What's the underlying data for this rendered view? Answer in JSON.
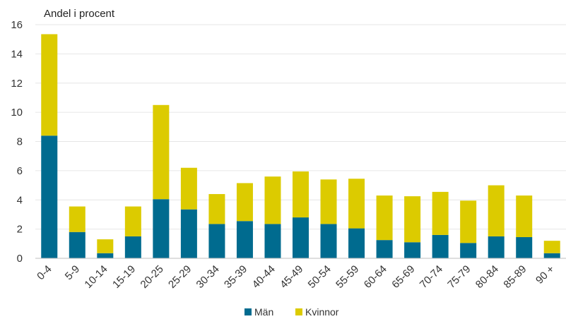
{
  "chart_data": {
    "type": "bar",
    "stacked": true,
    "ylabel": "Andel i procent",
    "ylim": [
      0,
      16
    ],
    "yticks": [
      0,
      2,
      4,
      6,
      8,
      10,
      12,
      14,
      16
    ],
    "grid": true,
    "legend_position": "bottom",
    "categories": [
      "0-4",
      "5-9",
      "10-14",
      "15-19",
      "20-25",
      "25-29",
      "30-34",
      "35-39",
      "40-44",
      "45-49",
      "50-54",
      "55-59",
      "60-64",
      "65-69",
      "70-74",
      "75-79",
      "80-84",
      "85-89",
      "90 +"
    ],
    "series": [
      {
        "name": "Män",
        "color": "#006b8f",
        "values": [
          8.4,
          1.8,
          0.35,
          1.5,
          4.05,
          3.35,
          2.35,
          2.55,
          2.35,
          2.8,
          2.35,
          2.05,
          1.25,
          1.1,
          1.6,
          1.05,
          1.5,
          1.45,
          0.35
        ]
      },
      {
        "name": "Kvinnor",
        "color": "#dccb00",
        "values": [
          6.95,
          1.75,
          0.95,
          2.05,
          6.45,
          2.85,
          2.05,
          2.6,
          3.25,
          3.15,
          3.05,
          3.4,
          3.05,
          3.15,
          2.95,
          2.9,
          3.5,
          2.85,
          0.85
        ]
      }
    ]
  }
}
